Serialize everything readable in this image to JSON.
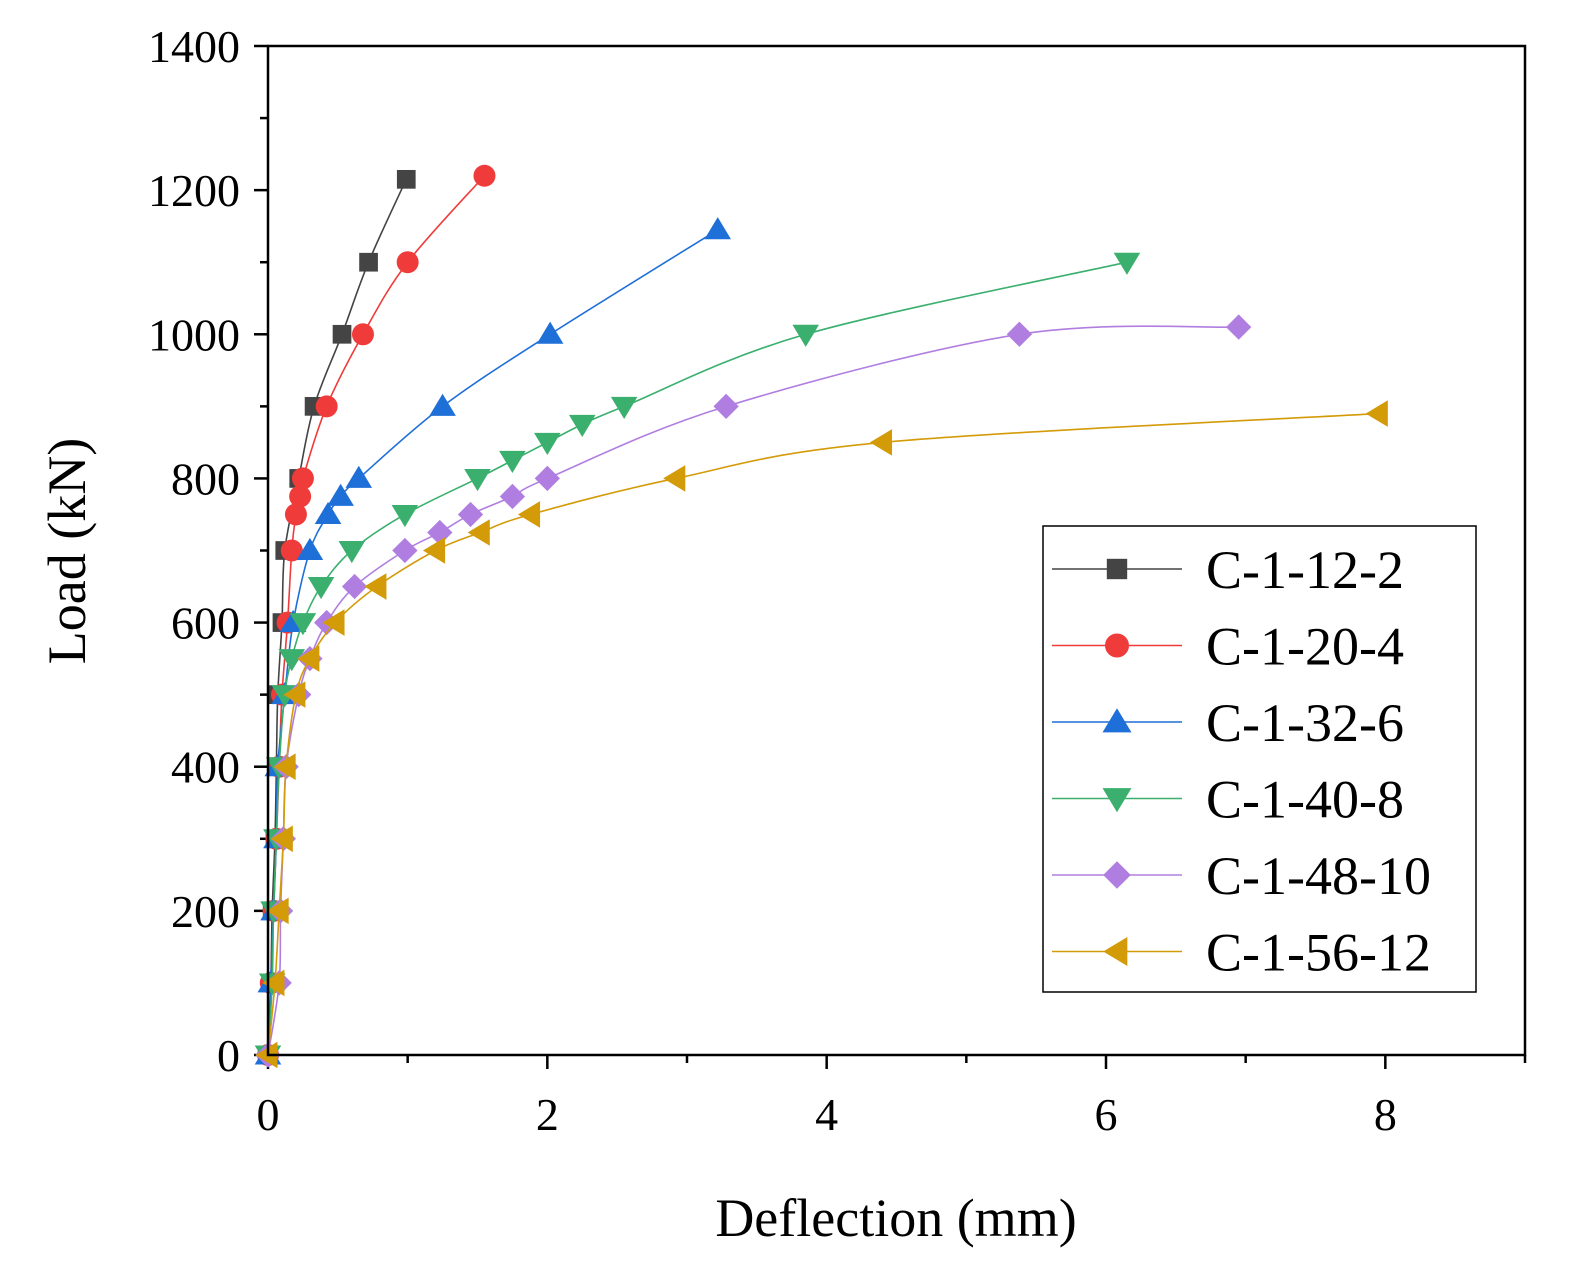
{
  "chart_data": {
    "type": "line",
    "title": "",
    "xlabel": "Deflection (mm)",
    "ylabel": "Load (kN)",
    "xlim": [
      0,
      9
    ],
    "ylim": [
      0,
      1400
    ],
    "x_ticks": [
      0,
      2,
      4,
      6,
      8
    ],
    "x_tick_labels": [
      "0",
      "2",
      "4",
      "6",
      "8"
    ],
    "y_ticks": [
      0,
      200,
      400,
      600,
      800,
      1000,
      1200,
      1400
    ],
    "y_tick_labels": [
      "0",
      "200",
      "400",
      "600",
      "800",
      "1000",
      "1200",
      "1400"
    ],
    "grid": false,
    "legend_position": "lower-right",
    "series": [
      {
        "name": "C-1-12-2",
        "color": "#444444",
        "marker": "square",
        "points": [
          [
            0,
            0
          ],
          [
            0.02,
            100
          ],
          [
            0.03,
            200
          ],
          [
            0.05,
            300
          ],
          [
            0.06,
            400
          ],
          [
            0.07,
            500
          ],
          [
            0.1,
            600
          ],
          [
            0.12,
            700
          ],
          [
            0.22,
            800
          ],
          [
            0.33,
            900
          ],
          [
            0.53,
            1000
          ],
          [
            0.72,
            1100
          ],
          [
            0.99,
            1215
          ]
        ]
      },
      {
        "name": "C-1-20-4",
        "color": "#f03b3b",
        "marker": "circle",
        "points": [
          [
            0,
            0
          ],
          [
            0.02,
            100
          ],
          [
            0.04,
            200
          ],
          [
            0.06,
            300
          ],
          [
            0.08,
            400
          ],
          [
            0.1,
            500
          ],
          [
            0.14,
            600
          ],
          [
            0.17,
            700
          ],
          [
            0.2,
            750
          ],
          [
            0.23,
            775
          ],
          [
            0.25,
            800
          ],
          [
            0.42,
            900
          ],
          [
            0.68,
            1000
          ],
          [
            1.0,
            1100
          ],
          [
            1.55,
            1220
          ]
        ]
      },
      {
        "name": "C-1-32-6",
        "color": "#1f6fd8",
        "marker": "triangle-up",
        "points": [
          [
            0,
            0
          ],
          [
            0.02,
            100
          ],
          [
            0.04,
            200
          ],
          [
            0.06,
            300
          ],
          [
            0.07,
            400
          ],
          [
            0.12,
            500
          ],
          [
            0.18,
            600
          ],
          [
            0.3,
            700
          ],
          [
            0.43,
            750
          ],
          [
            0.52,
            775
          ],
          [
            0.65,
            800
          ],
          [
            1.25,
            900
          ],
          [
            2.02,
            1000
          ],
          [
            3.22,
            1145
          ]
        ]
      },
      {
        "name": "C-1-40-8",
        "color": "#3aaf6e",
        "marker": "triangle-down",
        "points": [
          [
            0,
            0
          ],
          [
            0.03,
            100
          ],
          [
            0.04,
            200
          ],
          [
            0.06,
            300
          ],
          [
            0.08,
            400
          ],
          [
            0.12,
            500
          ],
          [
            0.17,
            550
          ],
          [
            0.25,
            600
          ],
          [
            0.38,
            650
          ],
          [
            0.6,
            700
          ],
          [
            0.98,
            750
          ],
          [
            1.5,
            800
          ],
          [
            1.75,
            825
          ],
          [
            2.0,
            850
          ],
          [
            2.25,
            875
          ],
          [
            2.55,
            900
          ],
          [
            3.85,
            1000
          ],
          [
            6.15,
            1100
          ]
        ]
      },
      {
        "name": "C-1-48-10",
        "color": "#b07ee0",
        "marker": "diamond",
        "points": [
          [
            0,
            0
          ],
          [
            0.08,
            100
          ],
          [
            0.09,
            200
          ],
          [
            0.11,
            300
          ],
          [
            0.13,
            400
          ],
          [
            0.22,
            500
          ],
          [
            0.3,
            550
          ],
          [
            0.42,
            600
          ],
          [
            0.62,
            650
          ],
          [
            0.98,
            700
          ],
          [
            1.23,
            725
          ],
          [
            1.45,
            750
          ],
          [
            1.75,
            775
          ],
          [
            2.0,
            800
          ],
          [
            3.28,
            900
          ],
          [
            5.38,
            1000
          ],
          [
            6.95,
            1010
          ]
        ]
      },
      {
        "name": "C-1-56-12",
        "color": "#d49b09",
        "marker": "triangle-left",
        "points": [
          [
            0,
            0
          ],
          [
            0.05,
            100
          ],
          [
            0.08,
            200
          ],
          [
            0.11,
            300
          ],
          [
            0.13,
            400
          ],
          [
            0.2,
            500
          ],
          [
            0.3,
            550
          ],
          [
            0.48,
            600
          ],
          [
            0.78,
            650
          ],
          [
            1.2,
            700
          ],
          [
            1.52,
            725
          ],
          [
            1.88,
            750
          ],
          [
            2.92,
            800
          ],
          [
            4.4,
            850
          ],
          [
            7.95,
            890
          ]
        ]
      }
    ]
  }
}
